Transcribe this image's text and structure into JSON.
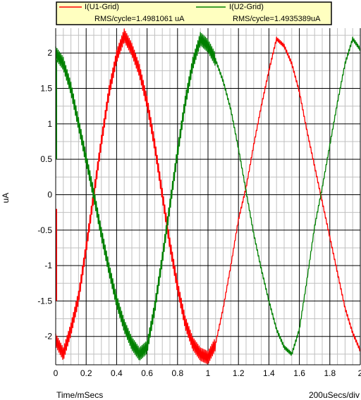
{
  "chart_data": {
    "type": "line",
    "xlabel": "Time/mSecs",
    "ylabel": "uA",
    "x_scale_note": "200uSecs/div",
    "xlim": [
      0,
      2
    ],
    "ylim": [
      -2.4,
      2.35
    ],
    "x_ticks": [
      "0",
      "0.2",
      "0.4",
      "0.6",
      "0.8",
      "1",
      "1.2",
      "1.4",
      "1.6",
      "1.8",
      "2"
    ],
    "y_ticks": [
      "2",
      "1.5",
      "1",
      "0.5",
      "0",
      "-0.5",
      "-1",
      "-1.5",
      "-2"
    ],
    "grid": true,
    "legend_position": "top",
    "legend": [
      {
        "name": "I(U1-Grid)",
        "stat": "RMS/cycle=1.4981061 uA",
        "color": "#ff0000"
      },
      {
        "name": "I(U2-Grid)",
        "stat": "RMS/cycle=1.4935389uA",
        "color": "#008000"
      }
    ],
    "series": [
      {
        "name": "I(U1-Grid)",
        "color": "#ff0000",
        "x": [
          0.0,
          0.05,
          0.1,
          0.15,
          0.2,
          0.25,
          0.3,
          0.35,
          0.4,
          0.45,
          0.5,
          0.55,
          0.6,
          0.65,
          0.7,
          0.75,
          0.8,
          0.85,
          0.9,
          0.95,
          1.0,
          1.05,
          1.1,
          1.15,
          1.2,
          1.25,
          1.3,
          1.35,
          1.4,
          1.45,
          1.5,
          1.55,
          1.6,
          1.65,
          1.7,
          1.75,
          1.8,
          1.85,
          1.9,
          1.95,
          2.0
        ],
        "y": [
          -2.05,
          -2.25,
          -1.9,
          -1.45,
          -0.75,
          0.0,
          0.75,
          1.45,
          1.95,
          2.25,
          2.05,
          1.75,
          1.3,
          0.7,
          0.0,
          -0.7,
          -1.3,
          -1.8,
          -2.1,
          -2.25,
          -2.3,
          -2.1,
          -1.6,
          -1.0,
          -0.35,
          0.1,
          0.7,
          1.25,
          1.75,
          2.2,
          2.1,
          1.85,
          1.45,
          0.9,
          0.4,
          -0.1,
          -0.6,
          -1.1,
          -1.6,
          -1.95,
          -2.2
        ]
      },
      {
        "name": "I(U2-Grid)",
        "color": "#008000",
        "x": [
          0.0,
          0.05,
          0.1,
          0.15,
          0.2,
          0.25,
          0.3,
          0.35,
          0.4,
          0.45,
          0.5,
          0.55,
          0.6,
          0.65,
          0.7,
          0.75,
          0.8,
          0.85,
          0.9,
          0.95,
          1.0,
          1.05,
          1.1,
          1.15,
          1.2,
          1.25,
          1.3,
          1.35,
          1.4,
          1.45,
          1.5,
          1.55,
          1.6,
          1.65,
          1.7,
          1.75,
          1.8,
          1.85,
          1.9,
          1.95,
          2.0
        ],
        "y": [
          2.0,
          1.85,
          1.5,
          1.0,
          0.5,
          0.0,
          -0.55,
          -1.05,
          -1.5,
          -1.85,
          -2.1,
          -2.25,
          -2.15,
          -1.6,
          -0.9,
          -0.15,
          0.6,
          1.3,
          1.85,
          2.2,
          2.1,
          1.9,
          1.6,
          1.2,
          0.65,
          0.05,
          -0.55,
          -1.05,
          -1.5,
          -1.9,
          -2.15,
          -2.25,
          -1.9,
          -1.2,
          -0.45,
          0.1,
          0.7,
          1.3,
          1.85,
          2.2,
          2.05
        ]
      }
    ]
  }
}
